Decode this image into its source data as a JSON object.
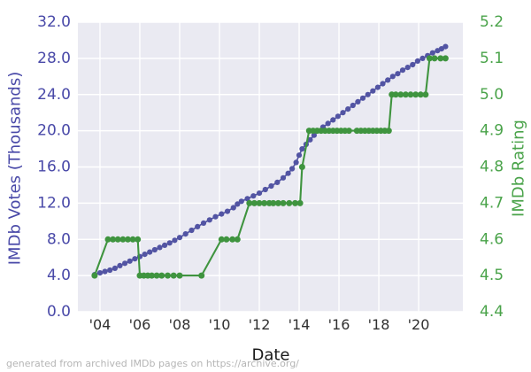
{
  "figure": {
    "caption": "generated from archived IMDb pages on https://archive.org/"
  },
  "chart_data": {
    "type": "line",
    "title": "",
    "xlabel": "Date",
    "ylabel_left": "IMDb Votes (Thousands)",
    "ylabel_right": "IMDb Rating",
    "grid": true,
    "legend": "none",
    "plot_bg": "#eaeaf2",
    "grid_color": "#ffffff",
    "axis_colors": {
      "left": "#4949a8",
      "right": "#4aa34a",
      "x": "#303030"
    },
    "xlim": [
      2002.89,
      2022.22
    ],
    "x_ticks": [
      {
        "label": "'04",
        "year": 2004
      },
      {
        "label": "'06",
        "year": 2006
      },
      {
        "label": "'08",
        "year": 2008
      },
      {
        "label": "'10",
        "year": 2010
      },
      {
        "label": "'12",
        "year": 2012
      },
      {
        "label": "'14",
        "year": 2014
      },
      {
        "label": "'16",
        "year": 2016
      },
      {
        "label": "'18",
        "year": 2018
      },
      {
        "label": "'20",
        "year": 2020
      }
    ],
    "y_left": {
      "min": 0,
      "max": 32,
      "ticks": [
        {
          "label": "0.0",
          "value": 0
        },
        {
          "label": "4.0",
          "value": 4
        },
        {
          "label": "8.0",
          "value": 8
        },
        {
          "label": "12.0",
          "value": 12
        },
        {
          "label": "16.0",
          "value": 16
        },
        {
          "label": "20.0",
          "value": 20
        },
        {
          "label": "24.0",
          "value": 24
        },
        {
          "label": "28.0",
          "value": 28
        },
        {
          "label": "32.0",
          "value": 32
        }
      ]
    },
    "y_right": {
      "min": 4.4,
      "max": 5.2,
      "ticks": [
        {
          "label": "4.4",
          "value": 4.4
        },
        {
          "label": "4.5",
          "value": 4.5
        },
        {
          "label": "4.6",
          "value": 4.6
        },
        {
          "label": "4.7",
          "value": 4.7
        },
        {
          "label": "4.8",
          "value": 4.8
        },
        {
          "label": "4.9",
          "value": 4.9
        },
        {
          "label": "5.0",
          "value": 5.0
        },
        {
          "label": "5.1",
          "value": 5.1
        },
        {
          "label": "5.2",
          "value": 5.2
        }
      ]
    },
    "series": [
      {
        "name": "IMDb Votes (Thousands)",
        "axis": "left",
        "color": "#5254a3",
        "marker": "circle",
        "points": [
          [
            2003.73,
            4.1
          ],
          [
            2004.0,
            4.3
          ],
          [
            2004.25,
            4.45
          ],
          [
            2004.5,
            4.6
          ],
          [
            2004.75,
            4.8
          ],
          [
            2005.0,
            5.1
          ],
          [
            2005.25,
            5.35
          ],
          [
            2005.5,
            5.6
          ],
          [
            2005.75,
            5.85
          ],
          [
            2006.0,
            6.1
          ],
          [
            2006.25,
            6.35
          ],
          [
            2006.5,
            6.6
          ],
          [
            2006.75,
            6.85
          ],
          [
            2007.0,
            7.1
          ],
          [
            2007.25,
            7.35
          ],
          [
            2007.5,
            7.6
          ],
          [
            2007.75,
            7.9
          ],
          [
            2008.0,
            8.2
          ],
          [
            2008.3,
            8.6
          ],
          [
            2008.6,
            9.0
          ],
          [
            2008.9,
            9.4
          ],
          [
            2009.2,
            9.8
          ],
          [
            2009.5,
            10.15
          ],
          [
            2009.8,
            10.5
          ],
          [
            2010.1,
            10.8
          ],
          [
            2010.4,
            11.1
          ],
          [
            2010.7,
            11.5
          ],
          [
            2010.9,
            11.9
          ],
          [
            2011.1,
            12.2
          ],
          [
            2011.4,
            12.5
          ],
          [
            2011.7,
            12.8
          ],
          [
            2012.0,
            13.1
          ],
          [
            2012.3,
            13.5
          ],
          [
            2012.6,
            13.9
          ],
          [
            2012.9,
            14.3
          ],
          [
            2013.2,
            14.8
          ],
          [
            2013.45,
            15.3
          ],
          [
            2013.65,
            15.8
          ],
          [
            2013.85,
            16.5
          ],
          [
            2014.0,
            17.3
          ],
          [
            2014.15,
            18.0
          ],
          [
            2014.35,
            18.5
          ],
          [
            2014.55,
            19.0
          ],
          [
            2014.75,
            19.5
          ],
          [
            2014.95,
            20.0
          ],
          [
            2015.2,
            20.4
          ],
          [
            2015.45,
            20.8
          ],
          [
            2015.7,
            21.2
          ],
          [
            2015.95,
            21.6
          ],
          [
            2016.2,
            22.0
          ],
          [
            2016.45,
            22.4
          ],
          [
            2016.7,
            22.8
          ],
          [
            2016.95,
            23.2
          ],
          [
            2017.2,
            23.6
          ],
          [
            2017.45,
            24.0
          ],
          [
            2017.7,
            24.4
          ],
          [
            2017.95,
            24.8
          ],
          [
            2018.2,
            25.2
          ],
          [
            2018.45,
            25.6
          ],
          [
            2018.7,
            26.0
          ],
          [
            2018.95,
            26.3
          ],
          [
            2019.2,
            26.7
          ],
          [
            2019.45,
            27.0
          ],
          [
            2019.7,
            27.3
          ],
          [
            2019.95,
            27.7
          ],
          [
            2020.2,
            28.0
          ],
          [
            2020.45,
            28.3
          ],
          [
            2020.7,
            28.6
          ],
          [
            2020.95,
            28.85
          ],
          [
            2021.15,
            29.05
          ],
          [
            2021.35,
            29.3
          ]
        ]
      },
      {
        "name": "IMDb Rating",
        "axis": "right",
        "color": "#3f943f",
        "marker": "circle",
        "points": [
          [
            2003.73,
            4.5
          ],
          [
            2004.4,
            4.6
          ],
          [
            2004.65,
            4.6
          ],
          [
            2004.9,
            4.6
          ],
          [
            2005.15,
            4.6
          ],
          [
            2005.4,
            4.6
          ],
          [
            2005.65,
            4.6
          ],
          [
            2005.9,
            4.6
          ],
          [
            2006.0,
            4.5
          ],
          [
            2006.2,
            4.5
          ],
          [
            2006.4,
            4.5
          ],
          [
            2006.6,
            4.5
          ],
          [
            2006.85,
            4.5
          ],
          [
            2007.1,
            4.5
          ],
          [
            2007.4,
            4.5
          ],
          [
            2007.7,
            4.5
          ],
          [
            2008.0,
            4.5
          ],
          [
            2009.1,
            4.5
          ],
          [
            2010.1,
            4.6
          ],
          [
            2010.35,
            4.6
          ],
          [
            2010.65,
            4.6
          ],
          [
            2010.9,
            4.6
          ],
          [
            2011.5,
            4.7
          ],
          [
            2011.75,
            4.7
          ],
          [
            2012.0,
            4.7
          ],
          [
            2012.25,
            4.7
          ],
          [
            2012.5,
            4.7
          ],
          [
            2012.7,
            4.7
          ],
          [
            2012.95,
            4.7
          ],
          [
            2013.2,
            4.7
          ],
          [
            2013.5,
            4.7
          ],
          [
            2013.8,
            4.7
          ],
          [
            2014.05,
            4.7
          ],
          [
            2014.15,
            4.8
          ],
          [
            2014.5,
            4.9
          ],
          [
            2014.7,
            4.9
          ],
          [
            2014.9,
            4.9
          ],
          [
            2015.1,
            4.9
          ],
          [
            2015.3,
            4.9
          ],
          [
            2015.5,
            4.9
          ],
          [
            2015.7,
            4.9
          ],
          [
            2015.9,
            4.9
          ],
          [
            2016.1,
            4.9
          ],
          [
            2016.3,
            4.9
          ],
          [
            2016.5,
            4.9
          ],
          [
            2016.9,
            4.9
          ],
          [
            2017.1,
            4.9
          ],
          [
            2017.3,
            4.9
          ],
          [
            2017.5,
            4.9
          ],
          [
            2017.7,
            4.9
          ],
          [
            2017.9,
            4.9
          ],
          [
            2018.1,
            4.9
          ],
          [
            2018.3,
            4.9
          ],
          [
            2018.5,
            4.9
          ],
          [
            2018.65,
            5.0
          ],
          [
            2018.85,
            5.0
          ],
          [
            2019.1,
            5.0
          ],
          [
            2019.35,
            5.0
          ],
          [
            2019.6,
            5.0
          ],
          [
            2019.85,
            5.0
          ],
          [
            2020.1,
            5.0
          ],
          [
            2020.35,
            5.0
          ],
          [
            2020.55,
            5.1
          ],
          [
            2020.8,
            5.1
          ],
          [
            2021.1,
            5.1
          ],
          [
            2021.35,
            5.1
          ]
        ]
      }
    ]
  }
}
